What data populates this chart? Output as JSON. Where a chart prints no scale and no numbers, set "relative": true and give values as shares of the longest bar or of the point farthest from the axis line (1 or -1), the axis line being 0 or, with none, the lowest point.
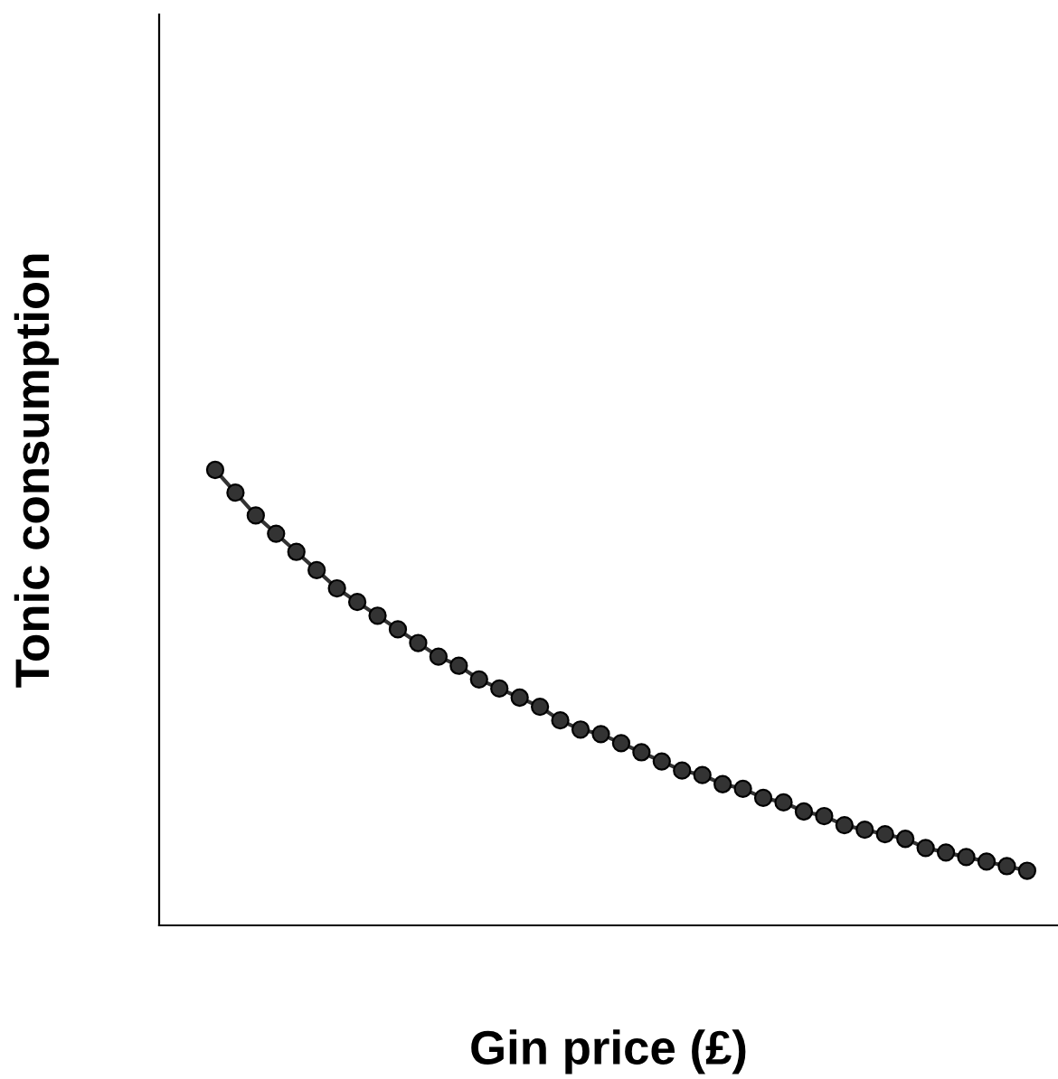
{
  "chart_data": {
    "type": "line",
    "xlabel": "Gin price (£)",
    "ylabel": "Tonic consumption",
    "relative": true,
    "marker": "circle",
    "line_style": "solid",
    "legend": false,
    "categories": [
      null,
      null,
      null,
      null,
      null,
      null,
      null,
      null,
      null,
      null,
      null,
      null,
      null,
      null,
      null,
      null,
      null,
      null,
      null,
      null,
      null,
      null,
      null,
      null,
      null,
      null,
      null,
      null,
      null,
      null,
      null,
      null,
      null,
      null,
      null,
      null,
      null,
      null,
      null,
      null,
      null
    ],
    "series": [
      {
        "color": "#333333",
        "values": [
          1.0,
          0.95,
          0.9,
          0.86,
          0.82,
          0.78,
          0.74,
          0.71,
          0.68,
          0.65,
          0.62,
          0.59,
          0.57,
          0.54,
          0.52,
          0.5,
          0.48,
          0.45,
          0.43,
          0.42,
          0.4,
          0.38,
          0.36,
          0.34,
          0.33,
          0.31,
          0.3,
          0.28,
          0.27,
          0.25,
          0.24,
          0.22,
          0.21,
          0.2,
          0.19,
          0.17,
          0.16,
          0.15,
          0.14,
          0.13,
          0.12
        ]
      }
    ]
  }
}
